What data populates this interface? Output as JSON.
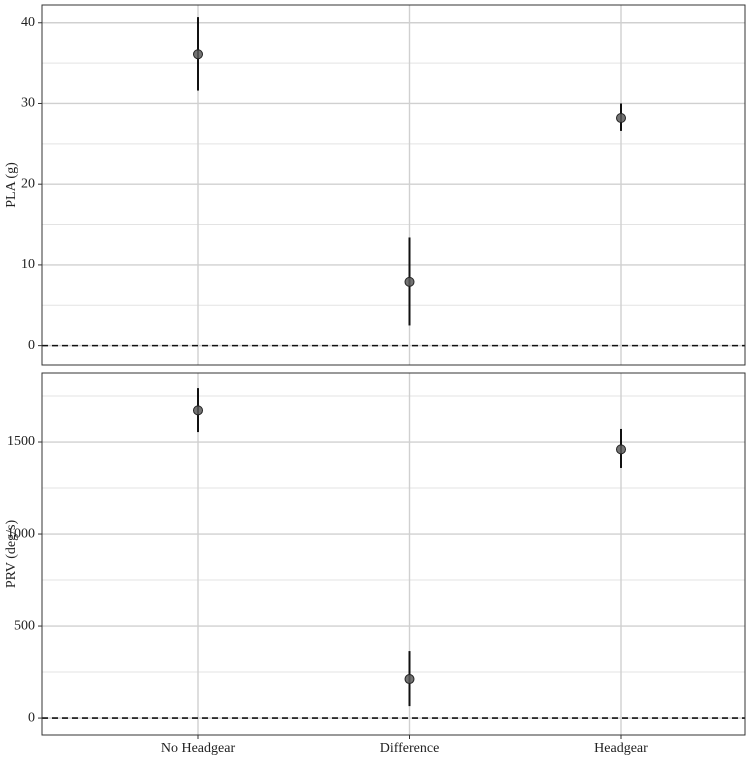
{
  "chart_data": [
    {
      "type": "pointrange",
      "y_label": "PLA (g)",
      "categories": [
        "No Headgear",
        "Difference",
        "Headgear"
      ],
      "values": [
        36.1,
        7.9,
        28.2
      ],
      "lower": [
        31.6,
        2.5,
        26.6
      ],
      "upper": [
        40.7,
        13.4,
        30.0
      ],
      "color": "#5a5a5a",
      "ylim": [
        -2.4,
        42.2
      ],
      "yticks": [
        0,
        10,
        20,
        30,
        40
      ],
      "minor_yticks": [
        5,
        15,
        25,
        35
      ],
      "reference_line": 0,
      "grid": true
    },
    {
      "type": "pointrange",
      "y_label": "PRV (deg/s)",
      "categories": [
        "No Headgear",
        "Difference",
        "Headgear"
      ],
      "values": [
        1672,
        212,
        1460
      ],
      "lower": [
        1554,
        65,
        1359
      ],
      "upper": [
        1793,
        364,
        1571
      ],
      "color": "#5a5a5a",
      "ylim": [
        -92,
        1875
      ],
      "yticks": [
        0,
        500,
        1000,
        1500
      ],
      "minor_yticks": [
        250,
        750,
        1250,
        1750
      ],
      "reference_line": 0,
      "grid": true
    }
  ]
}
